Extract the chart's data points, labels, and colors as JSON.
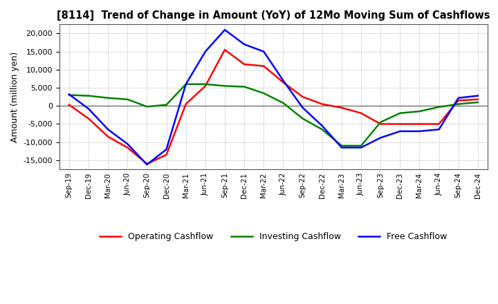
{
  "title": "[8114]  Trend of Change in Amount (YoY) of 12Mo Moving Sum of Cashflows",
  "ylabel": "Amount (million yen)",
  "labels": [
    "Sep-19",
    "Dec-19",
    "Mar-20",
    "Jun-20",
    "Sep-20",
    "Dec-20",
    "Mar-21",
    "Jun-21",
    "Sep-21",
    "Dec-21",
    "Mar-22",
    "Jun-22",
    "Sep-22",
    "Dec-22",
    "Mar-23",
    "Jun-23",
    "Sep-23",
    "Dec-23",
    "Mar-24",
    "Jun-24",
    "Sep-24",
    "Dec-24"
  ],
  "operating": [
    300,
    -3500,
    -8500,
    -11500,
    -16000,
    -13500,
    500,
    5500,
    15500,
    11500,
    11000,
    6500,
    2500,
    500,
    -500,
    -2000,
    -5000,
    -5000,
    -5000,
    -5000,
    1500,
    1800
  ],
  "investing": [
    3000,
    2800,
    2200,
    1800,
    -200,
    300,
    6000,
    6000,
    5500,
    5300,
    3500,
    800,
    -3500,
    -6500,
    -11000,
    -11000,
    -4500,
    -2000,
    -1500,
    -300,
    500,
    1000
  ],
  "free": [
    3200,
    -800,
    -6500,
    -10500,
    -16200,
    -12000,
    6000,
    15000,
    21000,
    17000,
    15000,
    7000,
    -500,
    -5500,
    -11500,
    -11500,
    -8800,
    -7000,
    -7000,
    -6500,
    2200,
    2800
  ],
  "operating_color": "#ff0000",
  "investing_color": "#008000",
  "free_color": "#0000ff",
  "ylim": [
    -17500,
    22500
  ],
  "yticks": [
    -15000,
    -10000,
    -5000,
    0,
    5000,
    10000,
    15000,
    20000
  ],
  "bg_color": "#ffffff",
  "plot_bg_color": "#ffffff",
  "grid_color": "#aaaaaa",
  "linewidth": 1.8,
  "legend_labels": [
    "Operating Cashflow",
    "Investing Cashflow",
    "Free Cashflow"
  ]
}
